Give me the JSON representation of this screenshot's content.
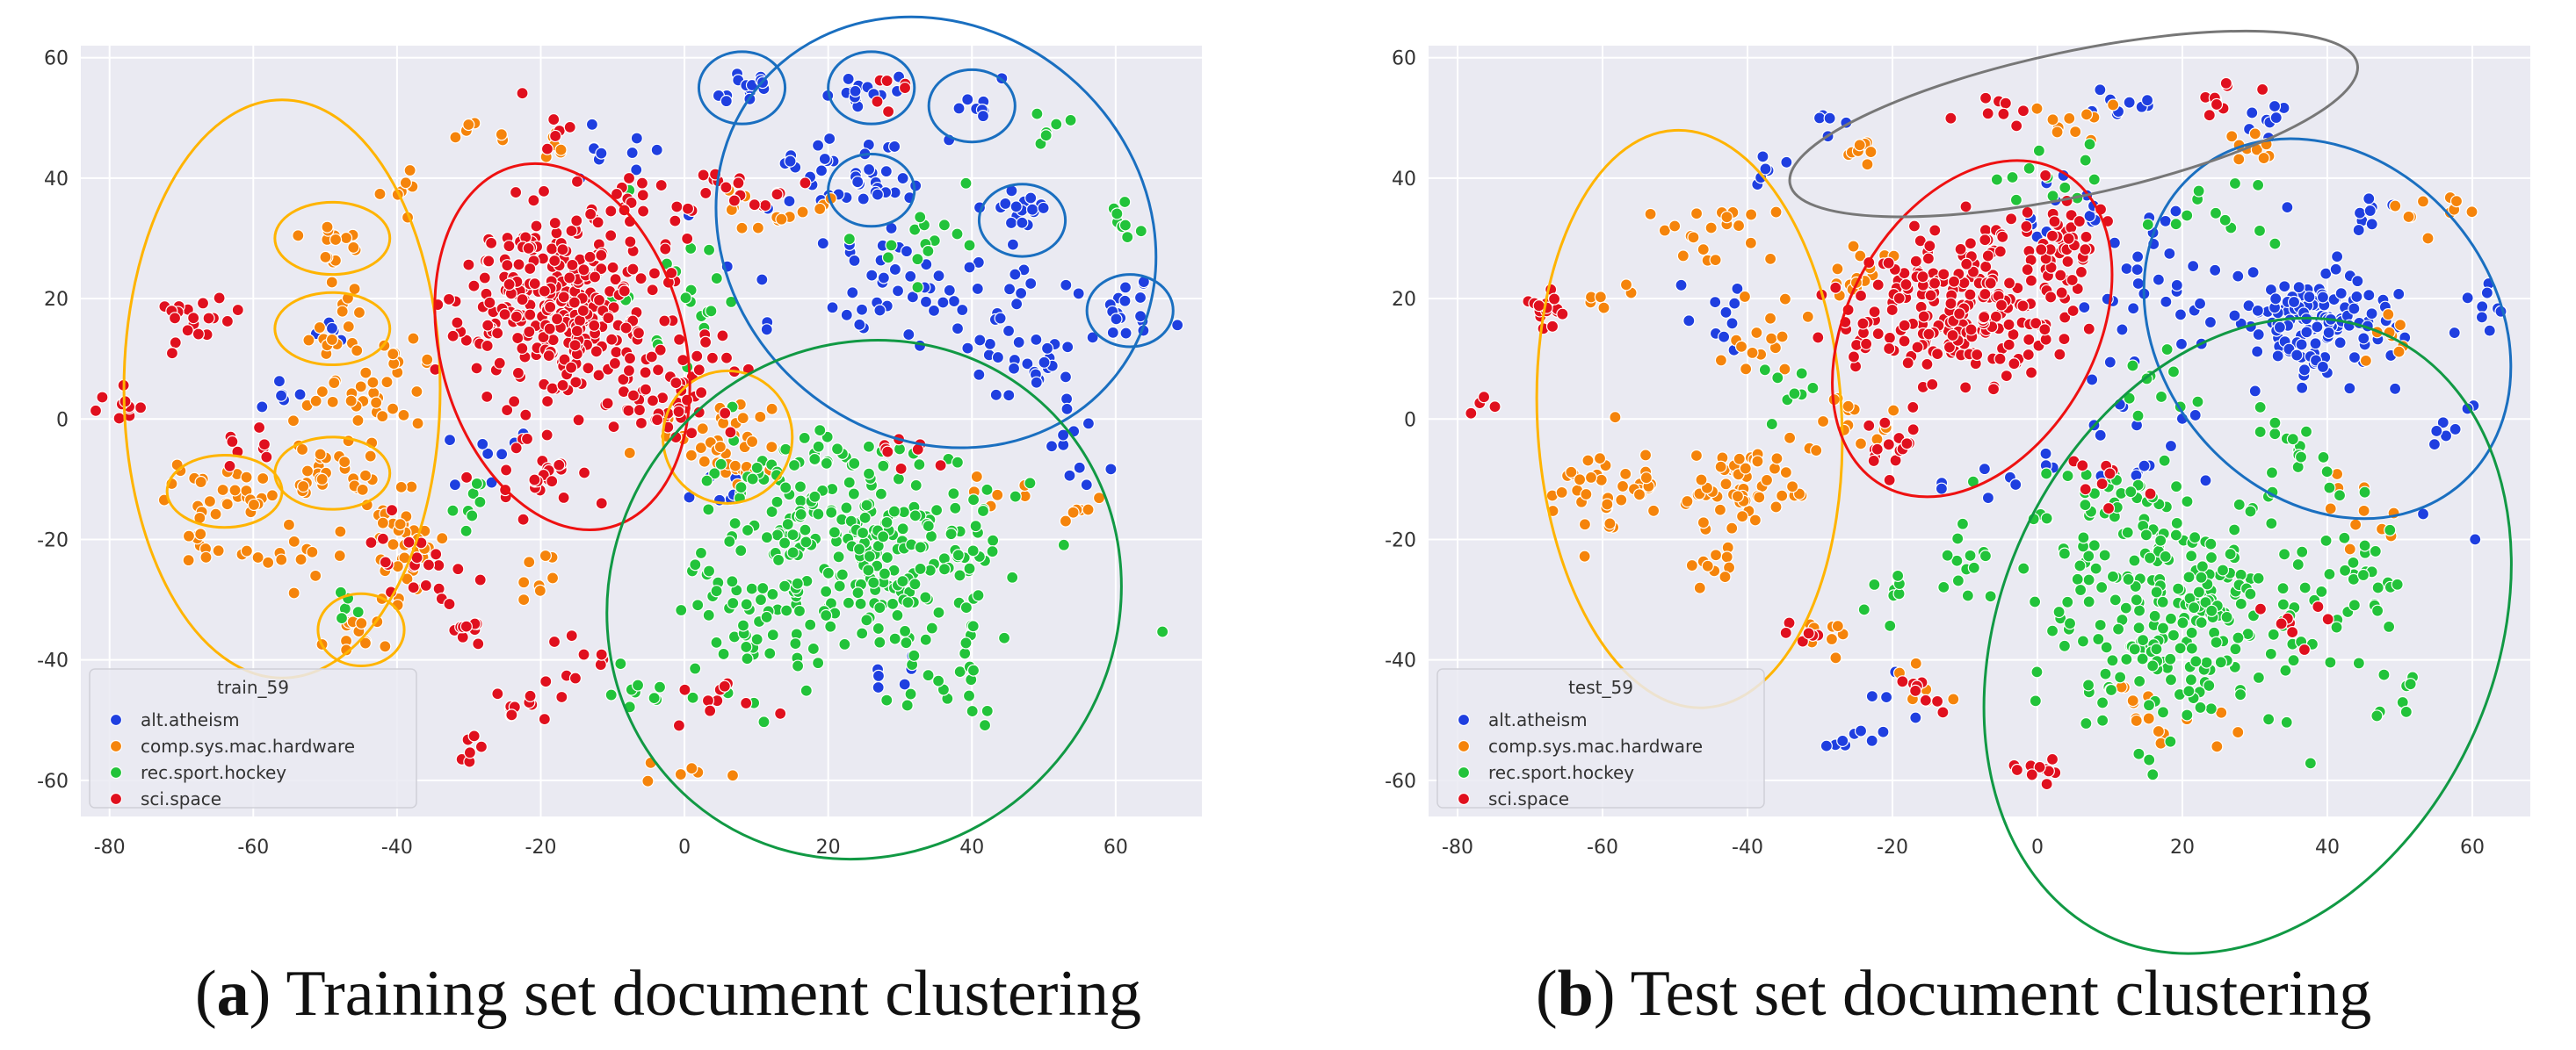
{
  "colors": {
    "background": "#eaeaf2",
    "grid": "#ffffff",
    "alt_atheism": "#1f3fe0",
    "comp_sys_mac_hardware": "#f5840b",
    "rec_sport_hockey": "#22c33a",
    "sci_space": "#e0101e",
    "ellipse_yellow": "#ffb400",
    "ellipse_red": "#ee1111",
    "ellipse_blue": "#1a6fc0",
    "ellipse_green": "#119944",
    "ellipse_gray": "#777777"
  },
  "captions": {
    "a_letter": "a",
    "a_text": " Training set document clustering",
    "b_letter": "b",
    "b_text": " Test set document clustering"
  },
  "chart_data": [
    {
      "type": "scatter",
      "title": "",
      "xlabel": "",
      "ylabel": "",
      "xlim": [
        -84,
        72
      ],
      "ylim": [
        -66,
        62
      ],
      "xticks": [
        -80,
        -60,
        -40,
        -20,
        0,
        20,
        40,
        60
      ],
      "yticks": [
        -60,
        -40,
        -20,
        0,
        20,
        40,
        60
      ],
      "grid": true,
      "legend": {
        "title": "train_59",
        "placement": "lower-left",
        "entries": [
          "alt.atheism",
          "comp.sys.mac.hardware",
          "rec.sport.hockey",
          "sci.space"
        ]
      },
      "series": [
        {
          "name": "alt.atheism",
          "clusters": [
            [
              8,
              55,
              4,
              3,
              14
            ],
            [
              26,
              55,
              4,
              3,
              14
            ],
            [
              40,
              53,
              3,
              3,
              8
            ],
            [
              25,
              39,
              5,
              4,
              18
            ],
            [
              47,
              35,
              4,
              3,
              16
            ],
            [
              62,
              18,
              5,
              4,
              18
            ],
            [
              33,
              20,
              16,
              10,
              60
            ],
            [
              48,
              10,
              8,
              6,
              25
            ],
            [
              55,
              -5,
              6,
              6,
              10
            ],
            [
              -55,
              5,
              4,
              3,
              6
            ],
            [
              -10,
              45,
              6,
              4,
              10
            ],
            [
              -28,
              -5,
              6,
              4,
              8
            ],
            [
              30,
              -42,
              4,
              3,
              6
            ],
            [
              20,
              40,
              12,
              6,
              25
            ],
            [
              5,
              -12,
              4,
              3,
              6
            ],
            [
              -50,
              15,
              3,
              3,
              5
            ]
          ]
        },
        {
          "name": "comp.sys.mac.hardware",
          "clusters": [
            [
              -49,
              30,
              4,
              3,
              14
            ],
            [
              -47,
              15,
              4,
              5,
              18
            ],
            [
              -65,
              -12,
              6,
              5,
              30
            ],
            [
              -48,
              -9,
              6,
              5,
              30
            ],
            [
              -45,
              -36,
              4,
              3,
              12
            ],
            [
              -40,
              -20,
              6,
              8,
              35
            ],
            [
              -40,
              38,
              3,
              3,
              8
            ],
            [
              -45,
              3,
              6,
              5,
              25
            ],
            [
              5,
              -3,
              8,
              6,
              40
            ],
            [
              12,
              35,
              5,
              4,
              15
            ],
            [
              -28,
              48,
              3,
              3,
              6
            ],
            [
              -18,
              45,
              3,
              3,
              6
            ],
            [
              -55,
              -22,
              5,
              5,
              15
            ],
            [
              -68,
              -22,
              4,
              3,
              8
            ],
            [
              -40,
              10,
              4,
              4,
              10
            ],
            [
              -20,
              -25,
              4,
              4,
              8
            ],
            [
              0,
              -58,
              4,
              2,
              6
            ],
            [
              45,
              -12,
              4,
              4,
              6
            ],
            [
              55,
              -15,
              4,
              4,
              6
            ]
          ]
        },
        {
          "name": "rec.sport.hockey",
          "clusters": [
            [
              25,
              -22,
              15,
              14,
              260
            ],
            [
              10,
              -35,
              10,
              12,
              40
            ],
            [
              15,
              -10,
              10,
              8,
              40
            ],
            [
              40,
              -45,
              4,
              4,
              12
            ],
            [
              62,
              33,
              3,
              3,
              8
            ],
            [
              50,
              48,
              3,
              3,
              6
            ],
            [
              -48,
              -32,
              3,
              3,
              5
            ],
            [
              -5,
              -45,
              6,
              4,
              10
            ],
            [
              35,
              30,
              8,
              6,
              15
            ],
            [
              0,
              20,
              8,
              8,
              20
            ],
            [
              -30,
              -15,
              4,
              6,
              8
            ]
          ]
        },
        {
          "name": "sci.space",
          "clusters": [
            [
              -17,
              18,
              11,
              13,
              300
            ],
            [
              -2,
              5,
              8,
              8,
              50
            ],
            [
              -68,
              16,
              4,
              4,
              20
            ],
            [
              -78,
              2,
              3,
              3,
              10
            ],
            [
              -20,
              -10,
              6,
              6,
              25
            ],
            [
              -38,
              -25,
              6,
              6,
              20
            ],
            [
              -30,
              -35,
              4,
              3,
              10
            ],
            [
              -15,
              -40,
              4,
              4,
              10
            ],
            [
              10,
              38,
              5,
              3,
              15
            ],
            [
              -60,
              -5,
              4,
              4,
              8
            ],
            [
              -17,
              48,
              3,
              3,
              6
            ],
            [
              -22,
              -48,
              4,
              4,
              10
            ],
            [
              -30,
              -55,
              3,
              3,
              6
            ],
            [
              5,
              -45,
              5,
              5,
              10
            ],
            [
              30,
              -5,
              4,
              4,
              8
            ],
            [
              28,
              55,
              3,
              3,
              6
            ],
            [
              -5,
              35,
              8,
              5,
              20
            ]
          ]
        }
      ],
      "annotation_ellipses": [
        {
          "color": "yellow",
          "cx": -56,
          "cy": 5,
          "rx": 22,
          "ry": 48,
          "rot": 0
        },
        {
          "color": "yellow",
          "cx": -49,
          "cy": 30,
          "rx": 8,
          "ry": 6,
          "rot": 0
        },
        {
          "color": "yellow",
          "cx": -49,
          "cy": 15,
          "rx": 8,
          "ry": 6,
          "rot": 0
        },
        {
          "color": "yellow",
          "cx": -64,
          "cy": -12,
          "rx": 8,
          "ry": 6,
          "rot": 0
        },
        {
          "color": "yellow",
          "cx": -49,
          "cy": -9,
          "rx": 8,
          "ry": 6,
          "rot": 0
        },
        {
          "color": "yellow",
          "cx": -45,
          "cy": -35,
          "rx": 6,
          "ry": 6,
          "rot": 0
        },
        {
          "color": "yellow",
          "cx": 6,
          "cy": -3,
          "rx": 9,
          "ry": 11,
          "rot": 0
        },
        {
          "color": "red",
          "cx": -17,
          "cy": 12,
          "rx": 17,
          "ry": 31,
          "rot": -15
        },
        {
          "color": "blue",
          "cx": 35,
          "cy": 31,
          "rx": 32,
          "ry": 34,
          "rot": 40
        },
        {
          "color": "blue",
          "cx": 8,
          "cy": 55,
          "rx": 6,
          "ry": 6,
          "rot": 0
        },
        {
          "color": "blue",
          "cx": 26,
          "cy": 55,
          "rx": 6,
          "ry": 6,
          "rot": 0
        },
        {
          "color": "blue",
          "cx": 40,
          "cy": 52,
          "rx": 6,
          "ry": 6,
          "rot": 0
        },
        {
          "color": "blue",
          "cx": 26,
          "cy": 38,
          "rx": 6,
          "ry": 6,
          "rot": 0
        },
        {
          "color": "blue",
          "cx": 47,
          "cy": 33,
          "rx": 6,
          "ry": 6,
          "rot": 0
        },
        {
          "color": "blue",
          "cx": 62,
          "cy": 18,
          "rx": 6,
          "ry": 6,
          "rot": 0
        },
        {
          "color": "green",
          "cx": 25,
          "cy": -30,
          "rx": 35,
          "ry": 44,
          "rot": 40
        }
      ]
    },
    {
      "type": "scatter",
      "title": "",
      "xlabel": "",
      "ylabel": "",
      "xlim": [
        -84,
        68
      ],
      "ylim": [
        -66,
        62
      ],
      "xticks": [
        -80,
        -60,
        -40,
        -20,
        0,
        20,
        40,
        60
      ],
      "yticks": [
        -60,
        -40,
        -20,
        0,
        20,
        40,
        60
      ],
      "grid": true,
      "legend": {
        "title": "test_59",
        "placement": "lower-left",
        "entries": [
          "alt.atheism",
          "comp.sys.mac.hardware",
          "rec.sport.hockey",
          "sci.space"
        ]
      },
      "series": [
        {
          "name": "alt.atheism",
          "clusters": [
            [
              38,
              16,
              8,
              7,
              120
            ],
            [
              10,
              52,
              5,
              3,
              10
            ],
            [
              -26,
              -53,
              3,
              2,
              8
            ],
            [
              -38,
              42,
              3,
              3,
              6
            ],
            [
              -30,
              50,
              3,
              3,
              5
            ],
            [
              30,
              50,
              4,
              3,
              8
            ],
            [
              45,
              35,
              4,
              3,
              8
            ],
            [
              62,
              18,
              3,
              3,
              8
            ],
            [
              -45,
              18,
              5,
              5,
              10
            ],
            [
              20,
              20,
              15,
              12,
              40
            ],
            [
              15,
              -5,
              8,
              8,
              15
            ],
            [
              55,
              -5,
              5,
              10,
              10
            ],
            [
              -5,
              -10,
              6,
              4,
              8
            ],
            [
              5,
              35,
              8,
              5,
              15
            ],
            [
              -20,
              -45,
              4,
              3,
              5
            ]
          ]
        },
        {
          "name": "comp.sys.mac.hardware",
          "clusters": [
            [
              -60,
              -12,
              6,
              6,
              40
            ],
            [
              -40,
              -12,
              8,
              7,
              60
            ],
            [
              -45,
              30,
              6,
              5,
              20
            ],
            [
              -38,
              15,
              5,
              5,
              15
            ],
            [
              -25,
              25,
              5,
              5,
              15
            ],
            [
              -25,
              0,
              5,
              5,
              15
            ],
            [
              -25,
              45,
              3,
              3,
              8
            ],
            [
              -45,
              -25,
              4,
              4,
              10
            ],
            [
              5,
              50,
              5,
              4,
              10
            ],
            [
              20,
              -50,
              8,
              6,
              15
            ],
            [
              30,
              45,
              4,
              3,
              10
            ],
            [
              55,
              35,
              6,
              4,
              10
            ],
            [
              50,
              15,
              5,
              5,
              8
            ],
            [
              -60,
              20,
              3,
              3,
              6
            ],
            [
              -30,
              -35,
              4,
              4,
              8
            ],
            [
              -15,
              -45,
              4,
              3,
              8
            ],
            [
              45,
              -15,
              6,
              6,
              10
            ]
          ]
        },
        {
          "name": "rec.sport.hockey",
          "clusters": [
            [
              20,
              -32,
              15,
              15,
              250
            ],
            [
              10,
              -15,
              8,
              6,
              30
            ],
            [
              45,
              -25,
              6,
              8,
              25
            ],
            [
              50,
              -45,
              4,
              4,
              8
            ],
            [
              35,
              -5,
              6,
              5,
              15
            ],
            [
              -10,
              -25,
              6,
              6,
              15
            ],
            [
              -20,
              -30,
              4,
              4,
              8
            ],
            [
              0,
              40,
              6,
              5,
              12
            ],
            [
              25,
              35,
              6,
              5,
              12
            ],
            [
              -35,
              5,
              4,
              4,
              8
            ],
            [
              15,
              5,
              5,
              5,
              10
            ]
          ]
        },
        {
          "name": "sci.space",
          "clusters": [
            [
              -10,
              18,
              12,
              10,
              220
            ],
            [
              3,
              30,
              6,
              6,
              40
            ],
            [
              -68,
              18,
              3,
              3,
              15
            ],
            [
              -76,
              2,
              2,
              2,
              4
            ],
            [
              0,
              -58,
              4,
              2,
              10
            ],
            [
              -15,
              -45,
              4,
              3,
              8
            ],
            [
              25,
              52,
              4,
              3,
              10
            ],
            [
              -20,
              -5,
              5,
              5,
              15
            ],
            [
              -32,
              -35,
              3,
              3,
              6
            ],
            [
              -25,
              15,
              4,
              4,
              10
            ],
            [
              10,
              -10,
              5,
              5,
              10
            ],
            [
              35,
              -35,
              5,
              5,
              8
            ],
            [
              -5,
              50,
              4,
              3,
              8
            ]
          ]
        }
      ],
      "annotation_ellipses": [
        {
          "color": "yellow",
          "cx": -48,
          "cy": 0,
          "rx": 21,
          "ry": 48,
          "rot": -3
        },
        {
          "color": "red",
          "cx": -9,
          "cy": 15,
          "rx": 17,
          "ry": 30,
          "rot": 30
        },
        {
          "color": "blue",
          "cx": 40,
          "cy": 15,
          "rx": 23,
          "ry": 34,
          "rot": -40
        },
        {
          "color": "green",
          "cx": 29,
          "cy": -36,
          "rx": 34,
          "ry": 55,
          "rot": 25
        },
        {
          "color": "gray",
          "cx": 5,
          "cy": 49,
          "rx": 40,
          "ry": 12,
          "rot": -12
        }
      ]
    }
  ]
}
